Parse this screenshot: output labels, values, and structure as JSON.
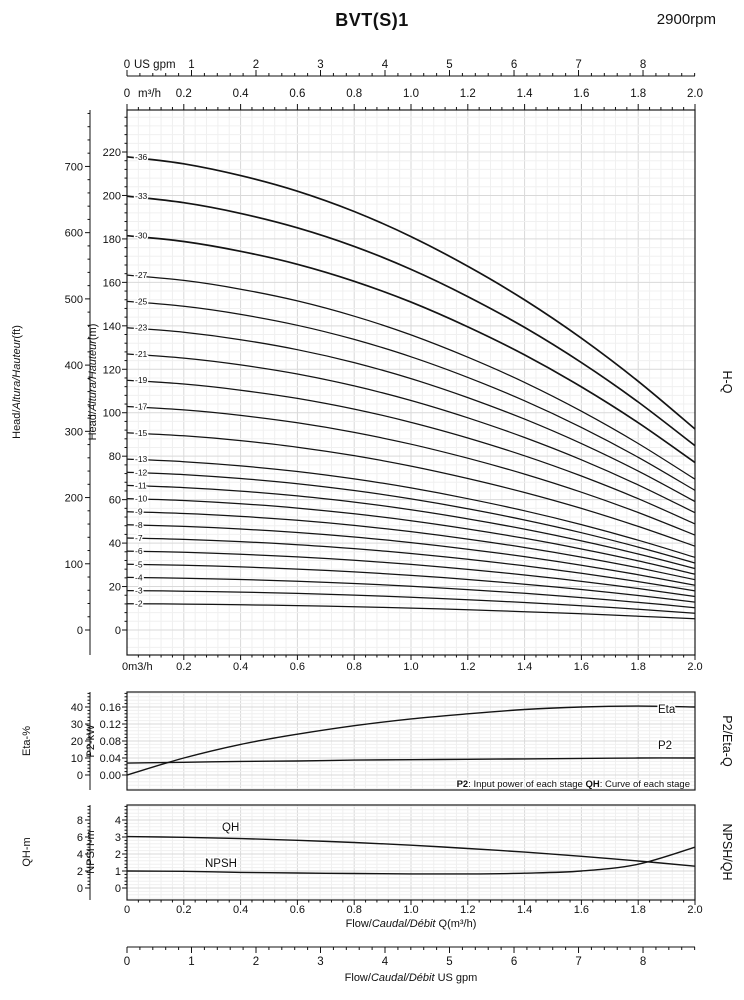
{
  "page": {
    "title": "BVT(S)1",
    "rpm": "2900rpm"
  },
  "shared_axes": {
    "top_gpm": {
      "unit_label": "US gpm",
      "ticks": [
        0,
        1,
        2,
        3,
        4,
        5,
        6,
        7,
        8
      ],
      "gpm_per_m3h": 4.4029
    },
    "top_m3h": {
      "zero_label": "0",
      "unit_label": "m³/h",
      "ticks": [
        "0.2",
        "0.4",
        "0.6",
        "0.8",
        "1.0",
        "1.2",
        "1.4",
        "1.6",
        "1.8",
        "2.0"
      ]
    },
    "bottom_gpm": {
      "ticks": [
        0,
        1,
        2,
        3,
        4,
        5,
        6,
        7,
        8
      ],
      "title_parts": [
        {
          "t": "Flow/"
        },
        {
          "i": "Caudal/Débit"
        },
        {
          "t": "  US gpm"
        }
      ]
    }
  },
  "chart_data": [
    {
      "id": "h-q",
      "type": "line",
      "right_label": "H-Q",
      "x_m3h": [
        0,
        0.2,
        0.4,
        0.6,
        0.8,
        1.0,
        1.2,
        1.4,
        1.6,
        1.8,
        2.0
      ],
      "x_range_m3h": [
        0,
        2.0
      ],
      "x_axis": {
        "zero_label": "0m3/h",
        "ticks": [
          "0.2",
          "0.4",
          "0.6",
          "0.8",
          "1.0",
          "1.2",
          "1.4",
          "1.6",
          "1.8",
          "2.0"
        ]
      },
      "y_m_axis": {
        "title_parts": [
          {
            "t": "Head/"
          },
          {
            "i": "Altura/Hauteur"
          },
          {
            "t": "(m)"
          }
        ],
        "ticks": [
          0,
          20,
          40,
          60,
          80,
          100,
          120,
          140,
          160,
          180,
          200,
          220
        ],
        "range": [
          0,
          240
        ]
      },
      "y_ft_axis": {
        "title_parts": [
          {
            "t": "Head/"
          },
          {
            "i": "Altura/Hauteur"
          },
          {
            "t": "(ft)"
          }
        ],
        "ticks": [
          0,
          100,
          200,
          300,
          400,
          500,
          600,
          700
        ]
      },
      "single_stage_head_m": [
        6.05,
        5.96,
        5.81,
        5.61,
        5.35,
        5.03,
        4.65,
        4.22,
        3.73,
        3.18,
        2.57
      ],
      "stage_counts": [
        2,
        3,
        4,
        5,
        6,
        7,
        8,
        9,
        10,
        11,
        12,
        13,
        15,
        17,
        19,
        21,
        23,
        25,
        27,
        30,
        33,
        36
      ],
      "stage_label_prefix": "-",
      "note": "head of curve -N equals N x single_stage_head_m at each flow"
    },
    {
      "id": "p2-eta-q",
      "type": "line",
      "right_label": "P2/Eta-Q",
      "x_m3h": [
        0,
        0.2,
        0.4,
        0.6,
        0.8,
        1.0,
        1.2,
        1.4,
        1.6,
        1.8,
        2.0
      ],
      "y_eta_axis": {
        "title": "Eta-%",
        "ticks": [
          0,
          10,
          20,
          30,
          40
        ]
      },
      "y_p2_axis": {
        "title": "P2-kW",
        "ticks": [
          "0.00",
          "0.04",
          "0.08",
          "0.12",
          "0.16"
        ]
      },
      "series": [
        {
          "name": "Eta",
          "unit": "%",
          "values": [
            0,
            10,
            18,
            24,
            29,
            33,
            36,
            38.5,
            40,
            40.5,
            40
          ]
        },
        {
          "name": "P2",
          "unit": "kW",
          "values": [
            0.028,
            0.03,
            0.032,
            0.033,
            0.035,
            0.036,
            0.037,
            0.038,
            0.039,
            0.04,
            0.04
          ]
        }
      ],
      "note_parts": [
        {
          "b": "P2"
        },
        {
          "t": ": Input power of each stage "
        },
        {
          "b": "QH"
        },
        {
          "t": ": Curve of each stage"
        }
      ]
    },
    {
      "id": "npsh-qh",
      "type": "line",
      "right_label": "NPSH/QH",
      "x_m3h": [
        0,
        0.2,
        0.4,
        0.6,
        0.8,
        1.0,
        1.2,
        1.4,
        1.6,
        1.8,
        2.0
      ],
      "x_axis": {
        "zero_label": "0",
        "ticks": [
          "0.2",
          "0.4",
          "0.6",
          "0.8",
          "1.0",
          "1.2",
          "1.4",
          "1.6",
          "1.8",
          "2.0"
        ],
        "title_parts": [
          {
            "t": "Flow/"
          },
          {
            "i": "Caudal/Débit"
          },
          {
            "t": " Q(m³/h)"
          }
        ]
      },
      "y_qh_axis": {
        "title": "QH-m",
        "ticks": [
          0,
          2,
          4,
          6,
          8
        ]
      },
      "y_npsh_axis": {
        "title": "NPSH-m",
        "ticks": [
          0,
          1,
          2,
          3,
          4
        ]
      },
      "series": [
        {
          "name": "QH",
          "unit": "m",
          "values": [
            6.05,
            5.96,
            5.81,
            5.61,
            5.35,
            5.03,
            4.65,
            4.22,
            3.73,
            3.18,
            2.57
          ]
        },
        {
          "name": "NPSH",
          "unit": "m",
          "values": [
            1.0,
            0.98,
            0.92,
            0.88,
            0.85,
            0.83,
            0.83,
            0.87,
            1.0,
            1.4,
            2.4
          ]
        }
      ]
    }
  ]
}
